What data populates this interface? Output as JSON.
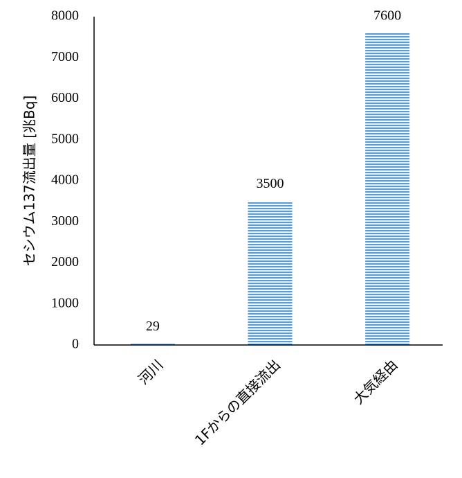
{
  "chart_data": {
    "type": "bar",
    "ylabel": "セシウム137流出量 [兆Bq]",
    "categories": [
      "河川",
      "1Fからの直接流出",
      "大気経由"
    ],
    "values": [
      29,
      3500,
      7600
    ],
    "color": "#5b9bd5",
    "ylim": [
      0,
      8000
    ],
    "yticks": [
      0,
      1000,
      2000,
      3000,
      4000,
      5000,
      6000,
      7000,
      8000
    ],
    "grid": false
  }
}
